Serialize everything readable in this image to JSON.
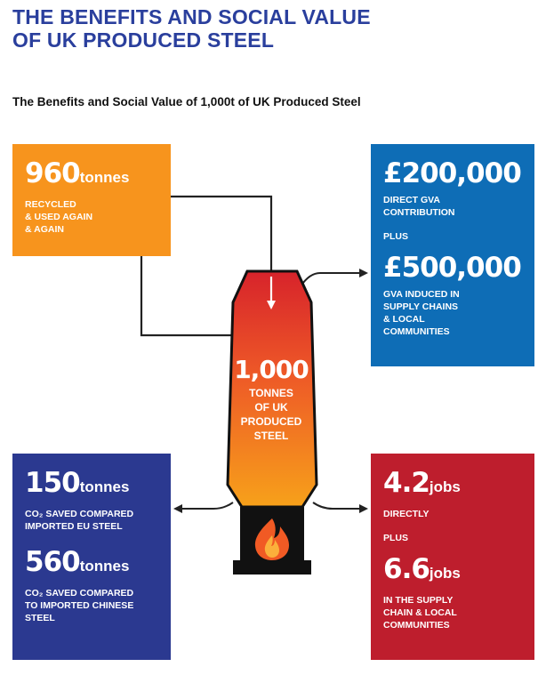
{
  "header": {
    "title_line1": "THE BENEFITS AND SOCIAL VALUE",
    "title_line2": "OF UK PRODUCED STEEL",
    "subtitle": "The Benefits and Social Value of 1,000t of UK Produced Steel"
  },
  "recycled": {
    "value": "960",
    "unit": "tonnes",
    "line1": "RECYCLED",
    "line2": "& USED AGAIN",
    "line3": "& AGAIN"
  },
  "gva": {
    "direct_value": "£200,000",
    "direct_line1": "DIRECT GVA",
    "direct_line2": "CONTRIBUTION",
    "plus": "PLUS",
    "induced_value": "£500,000",
    "induced_line1": "GVA INDUCED IN",
    "induced_line2": "SUPPLY CHAINS",
    "induced_line3": "& LOCAL",
    "induced_line4": "COMMUNITIES"
  },
  "co2": {
    "eu_value": "150",
    "eu_unit": "tonnes",
    "eu_line1": "CO₂ SAVED COMPARED",
    "eu_line2": "IMPORTED EU STEEL",
    "cn_value": "560",
    "cn_unit": "tonnes",
    "cn_line1": "CO₂ SAVED COMPARED",
    "cn_line2": "TO IMPORTED CHINESE",
    "cn_line3": "STEEL"
  },
  "jobs": {
    "direct_value": "4.2",
    "direct_unit": "jobs",
    "direct_line1": "DIRECTLY",
    "plus": "PLUS",
    "supply_value": "6.6",
    "supply_unit": "jobs",
    "supply_line1": "IN THE SUPPLY",
    "supply_line2": "CHAIN & LOCAL",
    "supply_line3": "COMMUNITIES"
  },
  "furnace": {
    "value": "1,000",
    "line1": "TONNES",
    "line2": "OF UK",
    "line3": "PRODUCED",
    "line4": "STEEL"
  },
  "colors": {
    "title": "#2a3f9d",
    "orange": "#f7941d",
    "blue": "#0e6db6",
    "navy": "#2b3990",
    "red": "#be1e2d"
  }
}
